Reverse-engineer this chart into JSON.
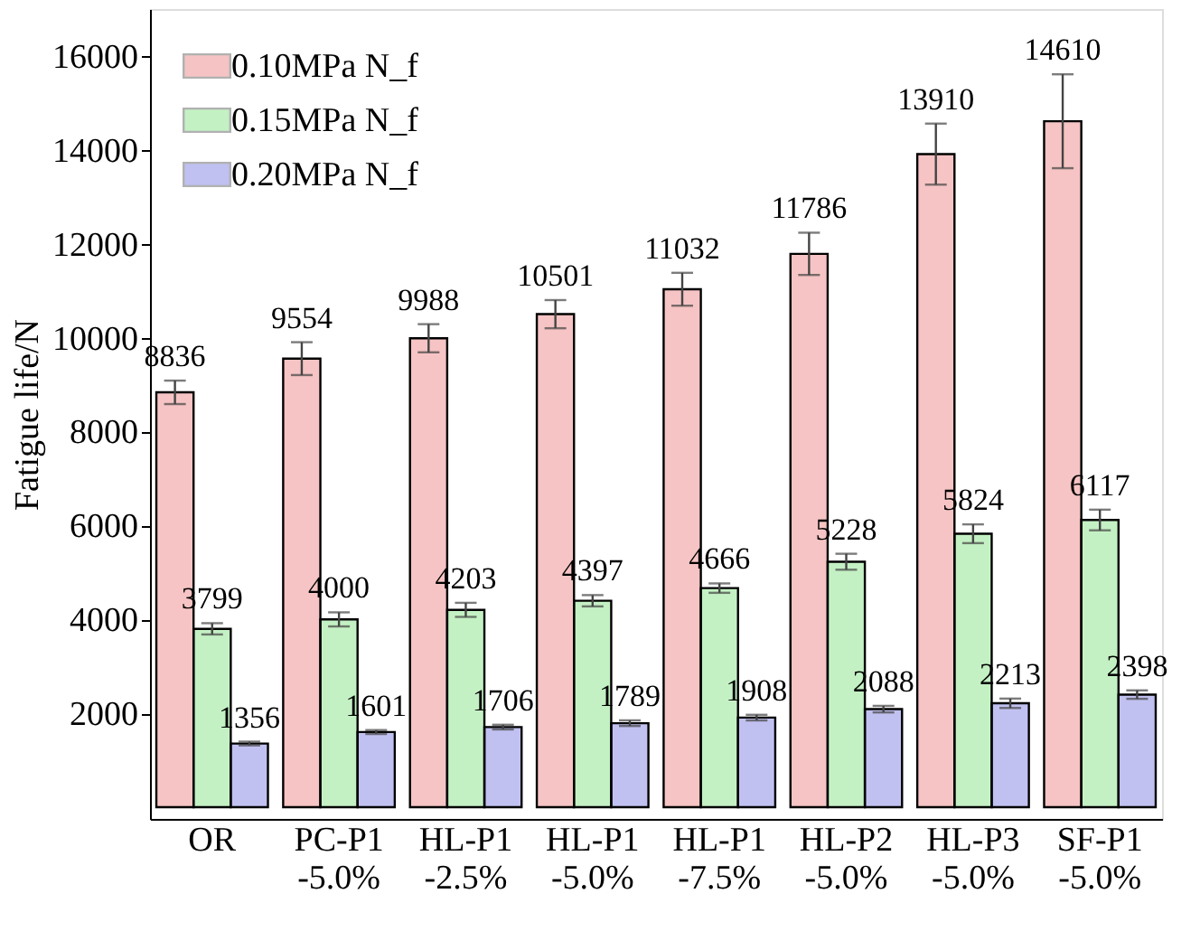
{
  "chart_data": {
    "type": "bar",
    "ylabel": "Fatigue life/N",
    "categories": [
      "OR",
      "PC-P1\n-5.0%",
      "HL-P1\n-2.5%",
      "HL-P1\n-5.0%",
      "HL-P1\n-7.5%",
      "HL-P2\n-5.0%",
      "HL-P3\n-5.0%",
      "SF-P1\n-5.0%"
    ],
    "series": [
      {
        "name": "0.10MPa N_f",
        "color": "#e03c3c",
        "values": [
          8836,
          9554,
          9988,
          10501,
          11032,
          11786,
          13910,
          14610
        ],
        "errors": [
          250,
          350,
          300,
          300,
          350,
          450,
          650,
          1000
        ]
      },
      {
        "name": "0.15MPa N_f",
        "color": "#3cd23c",
        "values": [
          3799,
          4000,
          4203,
          4397,
          4666,
          5228,
          5824,
          6117
        ],
        "errors": [
          120,
          150,
          150,
          120,
          100,
          170,
          200,
          220
        ]
      },
      {
        "name": "0.20MPa N_f",
        "color": "#3232d2",
        "values": [
          1356,
          1601,
          1706,
          1789,
          1908,
          2088,
          2213,
          2398
        ],
        "errors": [
          40,
          40,
          50,
          60,
          60,
          70,
          100,
          90
        ]
      }
    ],
    "data_labels": true,
    "ylim": [
      -250,
      17000
    ],
    "yticks": [
      2000,
      4000,
      6000,
      8000,
      10000,
      12000,
      14000,
      16000
    ],
    "grid": false,
    "legend": "top left"
  }
}
